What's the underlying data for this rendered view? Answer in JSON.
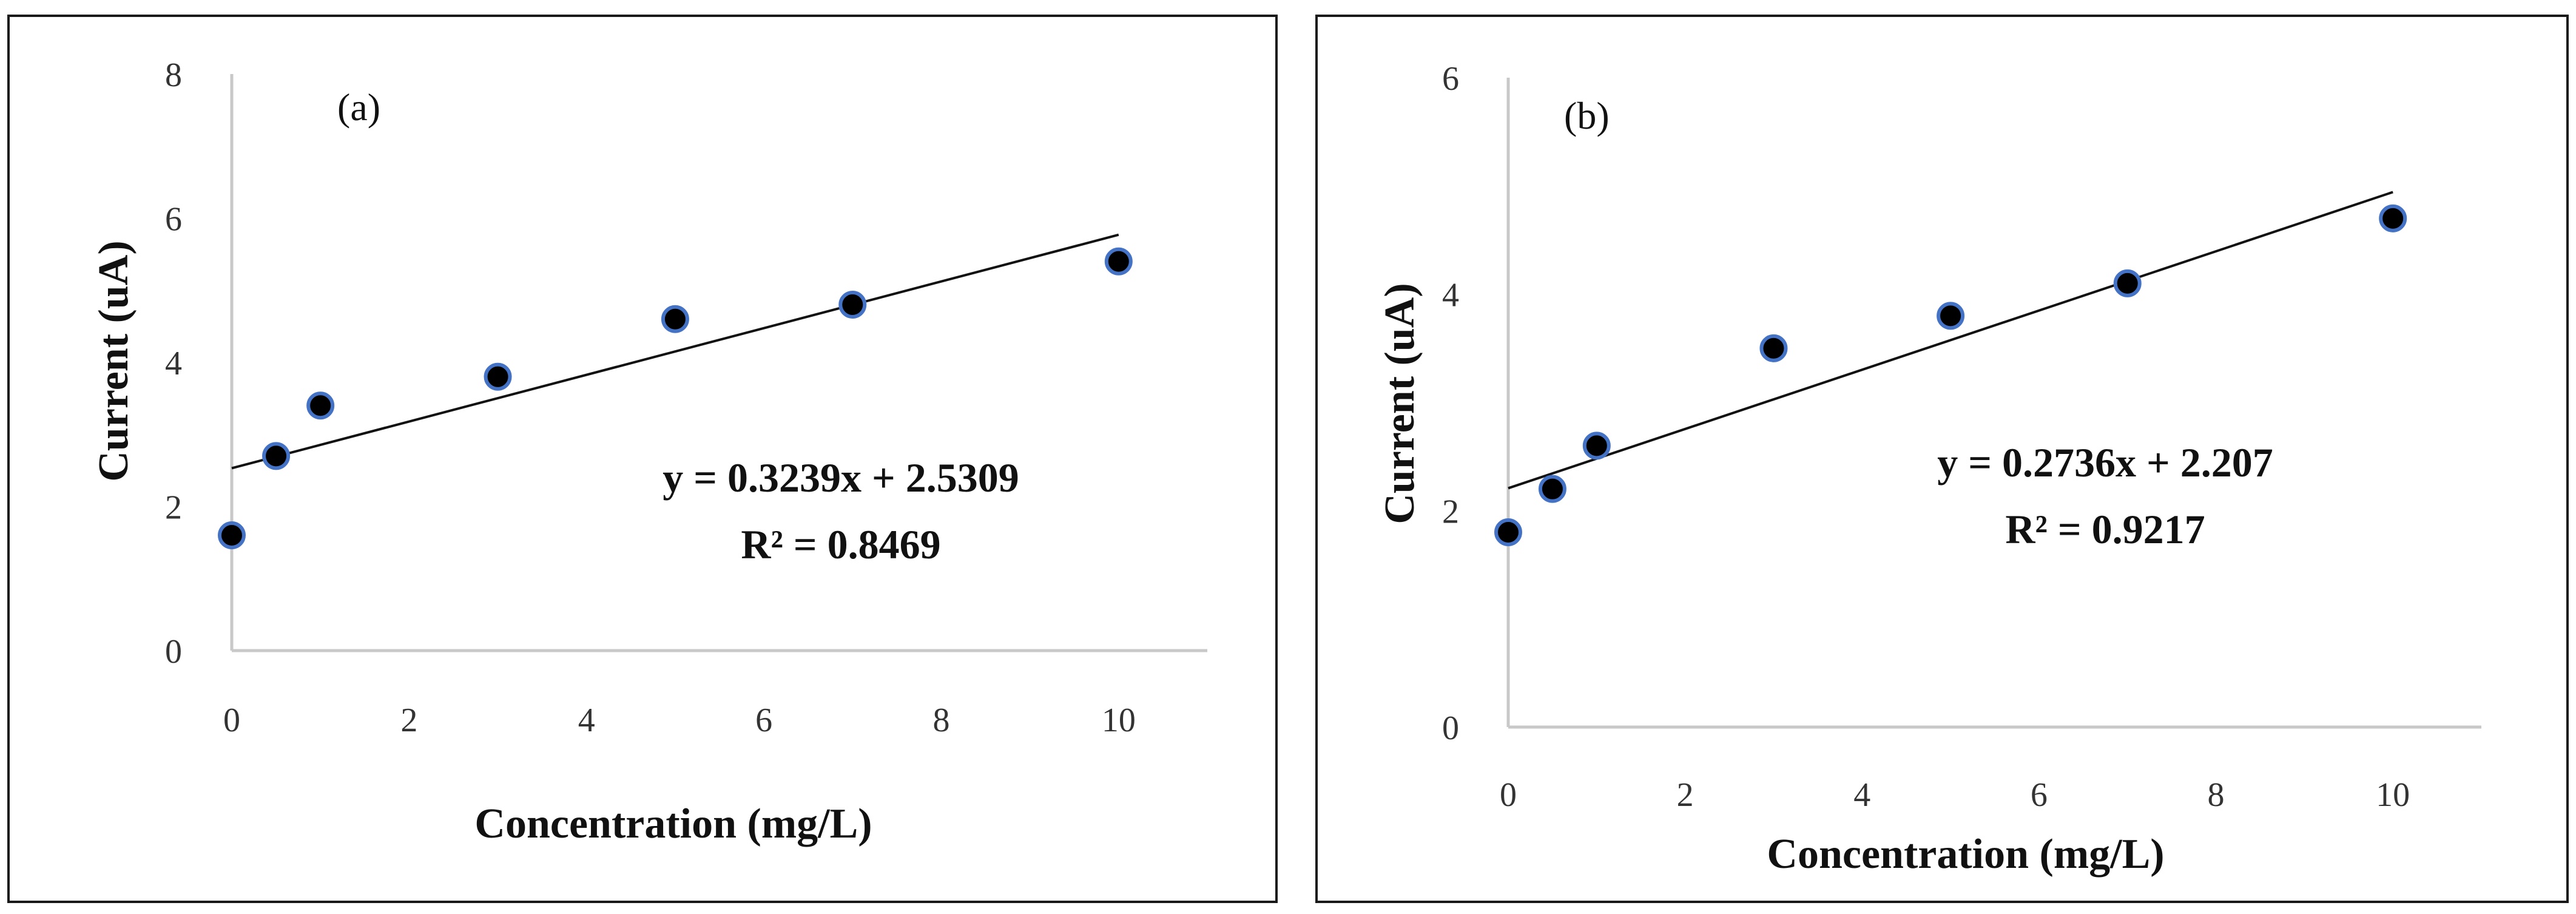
{
  "chart_data": [
    {
      "type": "scatter",
      "panel_label": "(a)",
      "xlabel": "Concentration (mg/L)",
      "ylabel": "Current (uA)",
      "xlim": [
        0,
        11
      ],
      "ylim": [
        0,
        8
      ],
      "xticks": [
        "0",
        "2",
        "4",
        "6",
        "8",
        "10"
      ],
      "yticks": [
        "0",
        "2",
        "4",
        "6",
        "8"
      ],
      "grid": false,
      "marker_color": "#000000",
      "marker_edge_color": "#4472C4",
      "x": [
        0,
        0.5,
        1,
        3,
        5,
        7,
        10
      ],
      "y": [
        1.6,
        2.7,
        3.4,
        3.8,
        4.6,
        4.8,
        5.4
      ],
      "trendline": {
        "slope": 0.3239,
        "intercept": 2.5309,
        "x_range": [
          0,
          10
        ]
      },
      "equation": "y = 0.3239x + 2.5309",
      "r_squared": "R² = 0.8469"
    },
    {
      "type": "scatter",
      "panel_label": "(b)",
      "xlabel": "Concentration (mg/L)",
      "ylabel": "Current (uA)",
      "xlim": [
        0,
        11
      ],
      "ylim": [
        0,
        6
      ],
      "xticks": [
        "0",
        "2",
        "4",
        "6",
        "8",
        "10"
      ],
      "yticks": [
        "0",
        "2",
        "4",
        "6"
      ],
      "grid": false,
      "marker_color": "#000000",
      "marker_edge_color": "#4472C4",
      "x": [
        0,
        0.5,
        1,
        3,
        5,
        7,
        10
      ],
      "y": [
        1.8,
        2.2,
        2.6,
        3.5,
        3.8,
        4.1,
        4.7
      ],
      "trendline": {
        "slope": 0.2736,
        "intercept": 2.207,
        "x_range": [
          0,
          10
        ]
      },
      "equation": "y = 0.2736x + 2.207",
      "r_squared": "R² = 0.9217"
    }
  ]
}
